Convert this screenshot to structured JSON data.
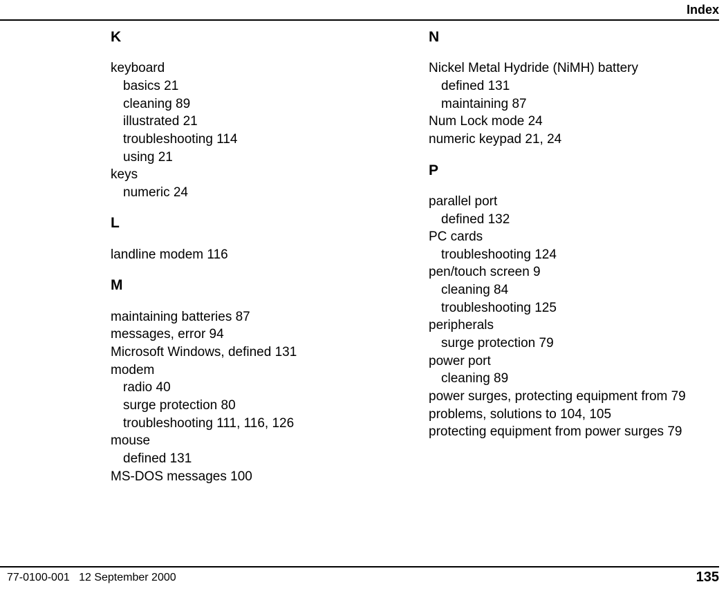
{
  "header": {
    "title": "Index"
  },
  "footer": {
    "doc_id": "77-0100-001",
    "date": "12 September 2000",
    "page": "135"
  },
  "left": {
    "K": {
      "letter": "K",
      "e1": "keyboard",
      "e1a": "basics  21",
      "e1b": "cleaning  89",
      "e1c": "illustrated  21",
      "e1d": "troubleshooting  114",
      "e1e": "using  21",
      "e2": "keys",
      "e2a": "numeric  24"
    },
    "L": {
      "letter": "L",
      "e1": "landline modem  116"
    },
    "M": {
      "letter": "M",
      "e1": "maintaining batteries  87",
      "e2": "messages, error  94",
      "e3": "Microsoft Windows, defined  131",
      "e4": "modem",
      "e4a": "radio  40",
      "e4b": "surge protection  80",
      "e4c": "troubleshooting  111, 116, 126",
      "e5": "mouse",
      "e5a": "defined  131",
      "e6": "MS-DOS messages  100"
    }
  },
  "right": {
    "N": {
      "letter": "N",
      "e1": "Nickel Metal Hydride (NiMH) battery",
      "e1a": "defined  131",
      "e1b": "maintaining  87",
      "e2": "Num Lock mode  24",
      "e3": "numeric keypad  21, 24"
    },
    "P": {
      "letter": "P",
      "e1": "parallel port",
      "e1a": "defined  132",
      "e2": "PC cards",
      "e2a": "troubleshooting  124",
      "e3": "pen/touch screen  9",
      "e3a": "cleaning  84",
      "e3b": "troubleshooting  125",
      "e4": "peripherals",
      "e4a": "surge protection  79",
      "e5": "power port",
      "e5a": "cleaning  89",
      "e6": "power surges, protecting equipment from  79",
      "e7": "problems, solutions to  104, 105",
      "e8": "protecting equipment from power surges  79"
    }
  }
}
